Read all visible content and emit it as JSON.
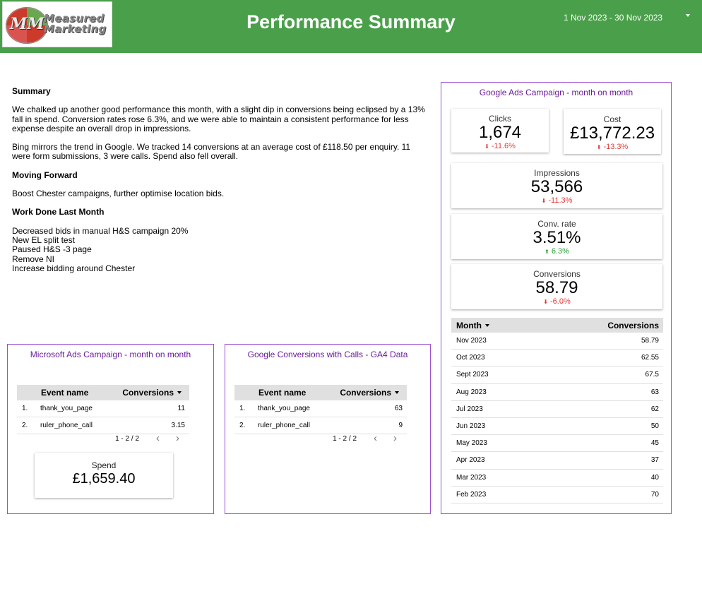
{
  "header": {
    "logo": {
      "line1": "Measured",
      "line2": "Marketing",
      "initials": "MM"
    },
    "title": "Performance Summary",
    "date_range": "1 Nov 2023 - 30 Nov 2023"
  },
  "summary": {
    "heading": "Summary",
    "paragraph1": "We chalked up another good performance this month, with a slight dip in conversions being eclipsed by a 13% fall in spend. Conversion rates rose 6.3%, and we were able to maintain a consistent performance for less expense despite an overall drop in impressions.",
    "paragraph2": "Bing mirrors the trend in Google. We tracked 14 conversions at an average cost of £118.50 per enquiry. 11 were form submissions, 3 were calls. Spend also fell overall.",
    "moving_forward_heading": "Moving Forward",
    "moving_forward_text": "Boost Chester campaigns, further optimise location bids.",
    "work_done_heading": "Work Done Last Month",
    "work_done_items": [
      "Decreased bids in manual H&S campaign 20%",
      "New EL split test",
      "Paused H&S -3 page",
      "Remove NI",
      "Increase bidding around Chester"
    ]
  },
  "microsoft_panel": {
    "title": "Microsoft Ads Campaign - month on month",
    "col_event": "Event name",
    "col_conversions": "Conversions",
    "rows": [
      {
        "n": "1.",
        "event": "thank_you_page",
        "conversions": "11"
      },
      {
        "n": "2.",
        "event": "ruler_phone_call",
        "conversions": "3.15"
      }
    ],
    "pager": "1 - 2 / 2",
    "spend_label": "Spend",
    "spend_value": "£1,659.40"
  },
  "ga4_panel": {
    "title": "Google Conversions with Calls - GA4 Data",
    "col_event": "Event name",
    "col_conversions": "Conversions",
    "rows": [
      {
        "n": "1.",
        "event": "thank_you_page",
        "conversions": "63"
      },
      {
        "n": "2.",
        "event": "ruler_phone_call",
        "conversions": "9"
      }
    ],
    "pager": "1 - 2 / 2"
  },
  "google_ads_panel": {
    "title": "Google Ads Campaign - month on month",
    "kpis": {
      "clicks": {
        "label": "Clicks",
        "value": "1,674",
        "delta": "-11.6%",
        "direction": "down"
      },
      "cost": {
        "label": "Cost",
        "value": "£13,772.23",
        "delta": "-13.3%",
        "direction": "down"
      },
      "impressions": {
        "label": "Impressions",
        "value": "53,566",
        "delta": "-11.3%",
        "direction": "down"
      },
      "conv_rate": {
        "label": "Conv. rate",
        "value": "3.51%",
        "delta": "6.3%",
        "direction": "up"
      },
      "conversions": {
        "label": "Conversions",
        "value": "58.79",
        "delta": "-6.0%",
        "direction": "down"
      }
    },
    "table": {
      "col_month": "Month",
      "col_conversions": "Conversions",
      "rows": [
        {
          "month": "Nov 2023",
          "conversions": "58.79"
        },
        {
          "month": "Oct 2023",
          "conversions": "62.55"
        },
        {
          "month": "Sept 2023",
          "conversions": "67.5"
        },
        {
          "month": "Aug 2023",
          "conversions": "63"
        },
        {
          "month": "Jul 2023",
          "conversions": "62"
        },
        {
          "month": "Jun 2023",
          "conversions": "50"
        },
        {
          "month": "May 2023",
          "conversions": "45"
        },
        {
          "month": "Apr 2023",
          "conversions": "37"
        },
        {
          "month": "Mar 2023",
          "conversions": "40"
        },
        {
          "month": "Feb 2023",
          "conversions": "70"
        }
      ]
    }
  },
  "colors": {
    "header_bg": "#4aa04a",
    "panel_border": "#9c4fd1",
    "panel_title": "#6a1b9a",
    "delta_down": "#e53935",
    "delta_up": "#2e9e3e"
  },
  "icons": {
    "date_caret": "caret-down-icon",
    "sort": "sort-desc-icon",
    "pager_prev": "chevron-left-icon",
    "pager_next": "chevron-right-icon",
    "delta_down": "arrow-down-icon",
    "delta_up": "arrow-up-icon"
  }
}
